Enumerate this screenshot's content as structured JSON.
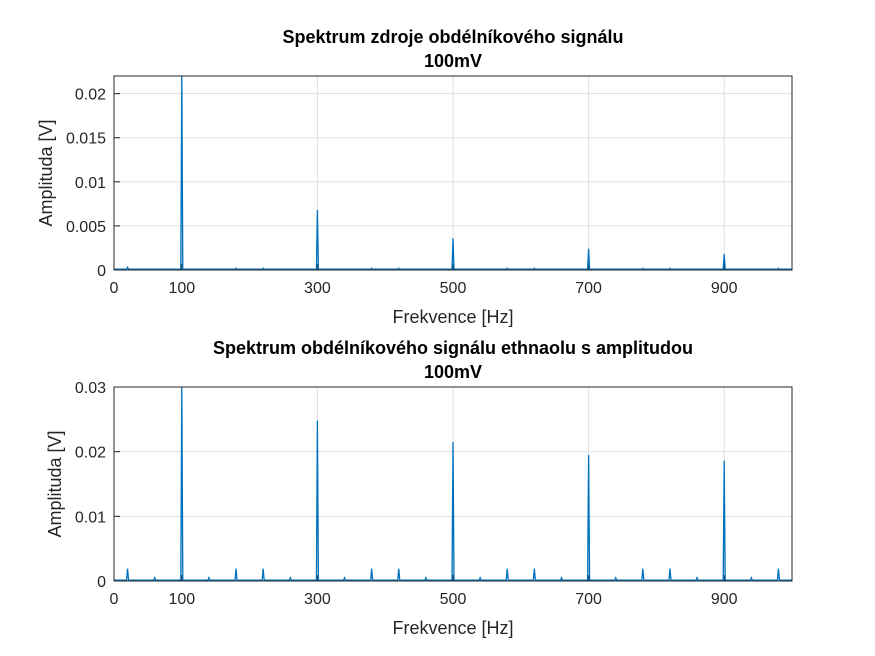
{
  "chart_data": [
    {
      "type": "line",
      "title": [
        "Spektrum zdroje obdélníkového signálu",
        "100mV"
      ],
      "xlabel": "Frekvence [Hz]",
      "ylabel": "Amplituda [V]",
      "xlim": [
        0,
        1000
      ],
      "ylim": [
        0,
        0.022
      ],
      "xticks": [
        0,
        100,
        300,
        500,
        700,
        900
      ],
      "xtick_labels": [
        "0",
        "100",
        "300",
        "500",
        "700",
        "900"
      ],
      "yticks": [
        0,
        0.005,
        0.01,
        0.015,
        0.02
      ],
      "ytick_labels": [
        "0",
        "0.005",
        "0.01",
        "0.015",
        "0.02"
      ],
      "grid": true,
      "color": "#0072BD",
      "peaks": [
        {
          "x": 100,
          "y": 0.0225
        },
        {
          "x": 300,
          "y": 0.0068
        },
        {
          "x": 500,
          "y": 0.0036
        },
        {
          "x": 700,
          "y": 0.0024
        },
        {
          "x": 900,
          "y": 0.0018
        },
        {
          "x": 20,
          "y": 0.0003
        },
        {
          "x": 180,
          "y": 0.0002
        },
        {
          "x": 220,
          "y": 0.0002
        },
        {
          "x": 380,
          "y": 0.0002
        },
        {
          "x": 420,
          "y": 0.0002
        },
        {
          "x": 580,
          "y": 0.0002
        },
        {
          "x": 620,
          "y": 0.0002
        },
        {
          "x": 780,
          "y": 0.0002
        },
        {
          "x": 820,
          "y": 0.0002
        },
        {
          "x": 980,
          "y": 0.0002
        }
      ]
    },
    {
      "type": "line",
      "title": [
        "Spektrum obdélníkového signálu ethnaolu s amplitudou",
        "100mV"
      ],
      "xlabel": "Frekvence [Hz]",
      "ylabel": "Amplituda [V]",
      "xlim": [
        0,
        1000
      ],
      "ylim": [
        0,
        0.03
      ],
      "xticks": [
        0,
        100,
        300,
        500,
        700,
        900
      ],
      "xtick_labels": [
        "0",
        "100",
        "300",
        "500",
        "700",
        "900"
      ],
      "yticks": [
        0,
        0.01,
        0.02,
        0.03
      ],
      "ytick_labels": [
        "0",
        "0.01",
        "0.02",
        "0.03"
      ],
      "grid": true,
      "color": "#0072BD",
      "peaks": [
        {
          "x": 100,
          "y": 0.0305
        },
        {
          "x": 300,
          "y": 0.0248
        },
        {
          "x": 500,
          "y": 0.0215
        },
        {
          "x": 700,
          "y": 0.0195
        },
        {
          "x": 900,
          "y": 0.0186
        },
        {
          "x": 20,
          "y": 0.0019
        },
        {
          "x": 60,
          "y": 0.0005
        },
        {
          "x": 140,
          "y": 0.0005
        },
        {
          "x": 180,
          "y": 0.0019
        },
        {
          "x": 220,
          "y": 0.0019
        },
        {
          "x": 260,
          "y": 0.0005
        },
        {
          "x": 340,
          "y": 0.0005
        },
        {
          "x": 380,
          "y": 0.0019
        },
        {
          "x": 420,
          "y": 0.0019
        },
        {
          "x": 460,
          "y": 0.0005
        },
        {
          "x": 540,
          "y": 0.0005
        },
        {
          "x": 580,
          "y": 0.0019
        },
        {
          "x": 620,
          "y": 0.0019
        },
        {
          "x": 660,
          "y": 0.0005
        },
        {
          "x": 740,
          "y": 0.0005
        },
        {
          "x": 780,
          "y": 0.0019
        },
        {
          "x": 820,
          "y": 0.0019
        },
        {
          "x": 860,
          "y": 0.0005
        },
        {
          "x": 940,
          "y": 0.0005
        },
        {
          "x": 980,
          "y": 0.0019
        }
      ]
    }
  ]
}
